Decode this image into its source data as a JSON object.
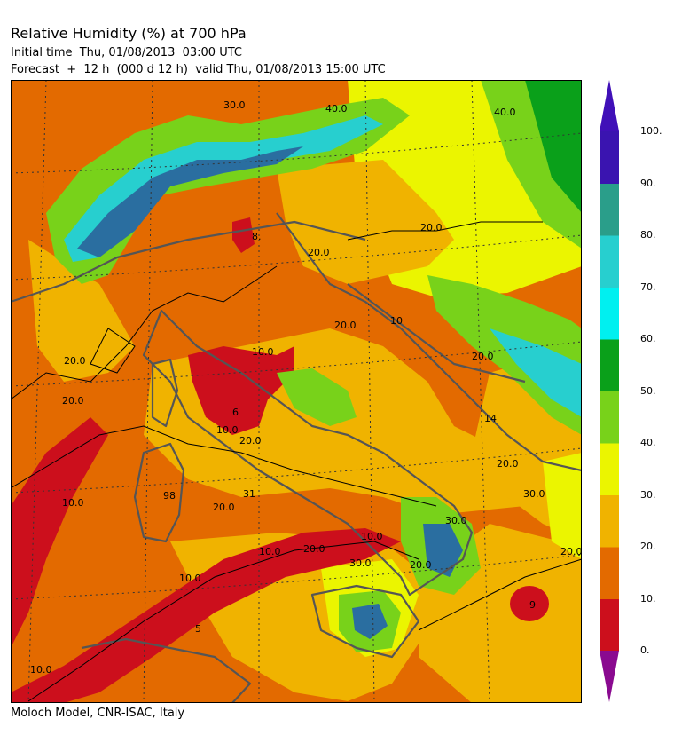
{
  "header": {
    "title": "Relative Humidity (%) at 700 hPa",
    "initial_time": "Initial time  Thu, 01/08/2013  03:00 UTC",
    "forecast": "Forecast  +  12 h  (000 d 12 h)  valid Thu, 01/08/2013 15:00 UTC"
  },
  "footer": {
    "credit": "Moloch Model, CNR-ISAC, Italy"
  },
  "legend": {
    "ticks": [
      "100.",
      "90.",
      "80.",
      "70.",
      "60.",
      "50.",
      "40.",
      "30.",
      "20.",
      "10.",
      "0."
    ],
    "colors": [
      "#cc0f1c",
      "#e36a00",
      "#f0b300",
      "#ebf500",
      "#78d21a",
      "#0aa01a",
      "#00f0f0",
      "#27cfcf",
      "#2a9e8a",
      "#2a6ea0",
      "#3a14b0"
    ],
    "under_color": "#8a0a90",
    "over_color": "#4010b8"
  },
  "map": {
    "labels": [
      "30.0",
      "40.0",
      "8.",
      "20.0",
      "20.0",
      "20.0",
      "10",
      "20.0",
      "20.0",
      "10.0",
      "6",
      "10.0",
      "20.0",
      "14",
      "20.0",
      "30.0",
      "98",
      "31",
      "20.0",
      "10.0",
      "10.0",
      "10.0",
      "20.0",
      "30.0",
      "20.0",
      "20.0",
      "9",
      "5",
      "10.0",
      "10.0",
      "20.0",
      "30.0",
      "40.0"
    ]
  }
}
